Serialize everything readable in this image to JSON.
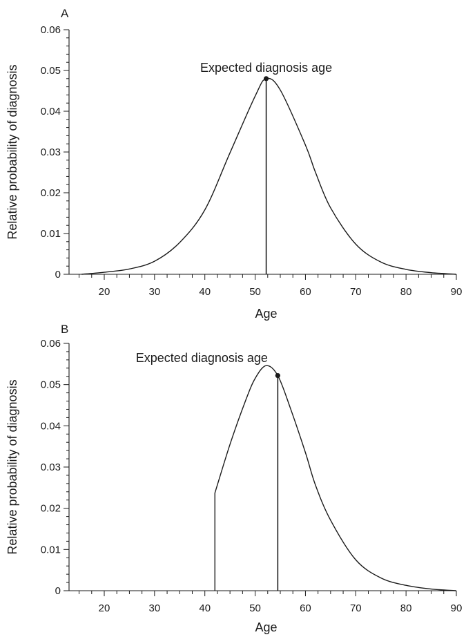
{
  "chart_data": [
    {
      "type": "line",
      "panel_label": "A",
      "xlabel": "Age",
      "ylabel": "Relative probability of diagnosis",
      "xlim": [
        13,
        90
      ],
      "ylim": [
        0,
        0.06
      ],
      "x_ticks": [
        20,
        30,
        40,
        50,
        60,
        70,
        80,
        90
      ],
      "x_tick_labels": [
        "20",
        "30",
        "40",
        "50",
        "60",
        "70",
        "80",
        "90"
      ],
      "y_ticks": [
        0,
        0.01,
        0.02,
        0.03,
        0.04,
        0.05,
        0.06
      ],
      "y_tick_labels": [
        "0",
        "0.01",
        "0.02",
        "0.03",
        "0.04",
        "0.05",
        "0.06"
      ],
      "grid": false,
      "annotation": {
        "text": "Expected diagnosis age",
        "x": 52.2,
        "y": 0.048
      },
      "series": [
        {
          "x": [
            15.5,
            20,
            25,
            30,
            35,
            40,
            45,
            50,
            52.2,
            55,
            60,
            62,
            65,
            70,
            75,
            80,
            85,
            90
          ],
          "y": [
            0,
            0.0005,
            0.0013,
            0.0032,
            0.0078,
            0.0158,
            0.0298,
            0.0437,
            0.048,
            0.0452,
            0.0317,
            0.025,
            0.0163,
            0.0074,
            0.003,
            0.0012,
            0.0004,
            0
          ]
        }
      ]
    },
    {
      "type": "line",
      "panel_label": "B",
      "xlabel": "Age",
      "ylabel": "Relative probability of diagnosis",
      "xlim": [
        13,
        90
      ],
      "ylim": [
        0,
        0.06
      ],
      "x_ticks": [
        20,
        30,
        40,
        50,
        60,
        70,
        80,
        90
      ],
      "x_tick_labels": [
        "20",
        "30",
        "40",
        "50",
        "60",
        "70",
        "80",
        "90"
      ],
      "y_ticks": [
        0,
        0.01,
        0.02,
        0.03,
        0.04,
        0.05,
        0.06
      ],
      "y_tick_labels": [
        "0",
        "0.01",
        "0.02",
        "0.03",
        "0.04",
        "0.05",
        "0.06"
      ],
      "grid": false,
      "annotation": {
        "text": "Expected diagnosis age",
        "x": 54.5,
        "y": 0.0522
      },
      "series": [
        {
          "x": [
            42,
            42,
            45,
            48,
            50,
            52.2,
            54.5,
            57,
            60,
            62,
            65,
            70,
            75,
            80,
            85,
            90
          ],
          "y": [
            0,
            0.0237,
            0.0355,
            0.0458,
            0.0515,
            0.0546,
            0.0522,
            0.0443,
            0.0335,
            0.0256,
            0.0171,
            0.0075,
            0.0031,
            0.0013,
            0.0004,
            0
          ]
        }
      ]
    }
  ]
}
